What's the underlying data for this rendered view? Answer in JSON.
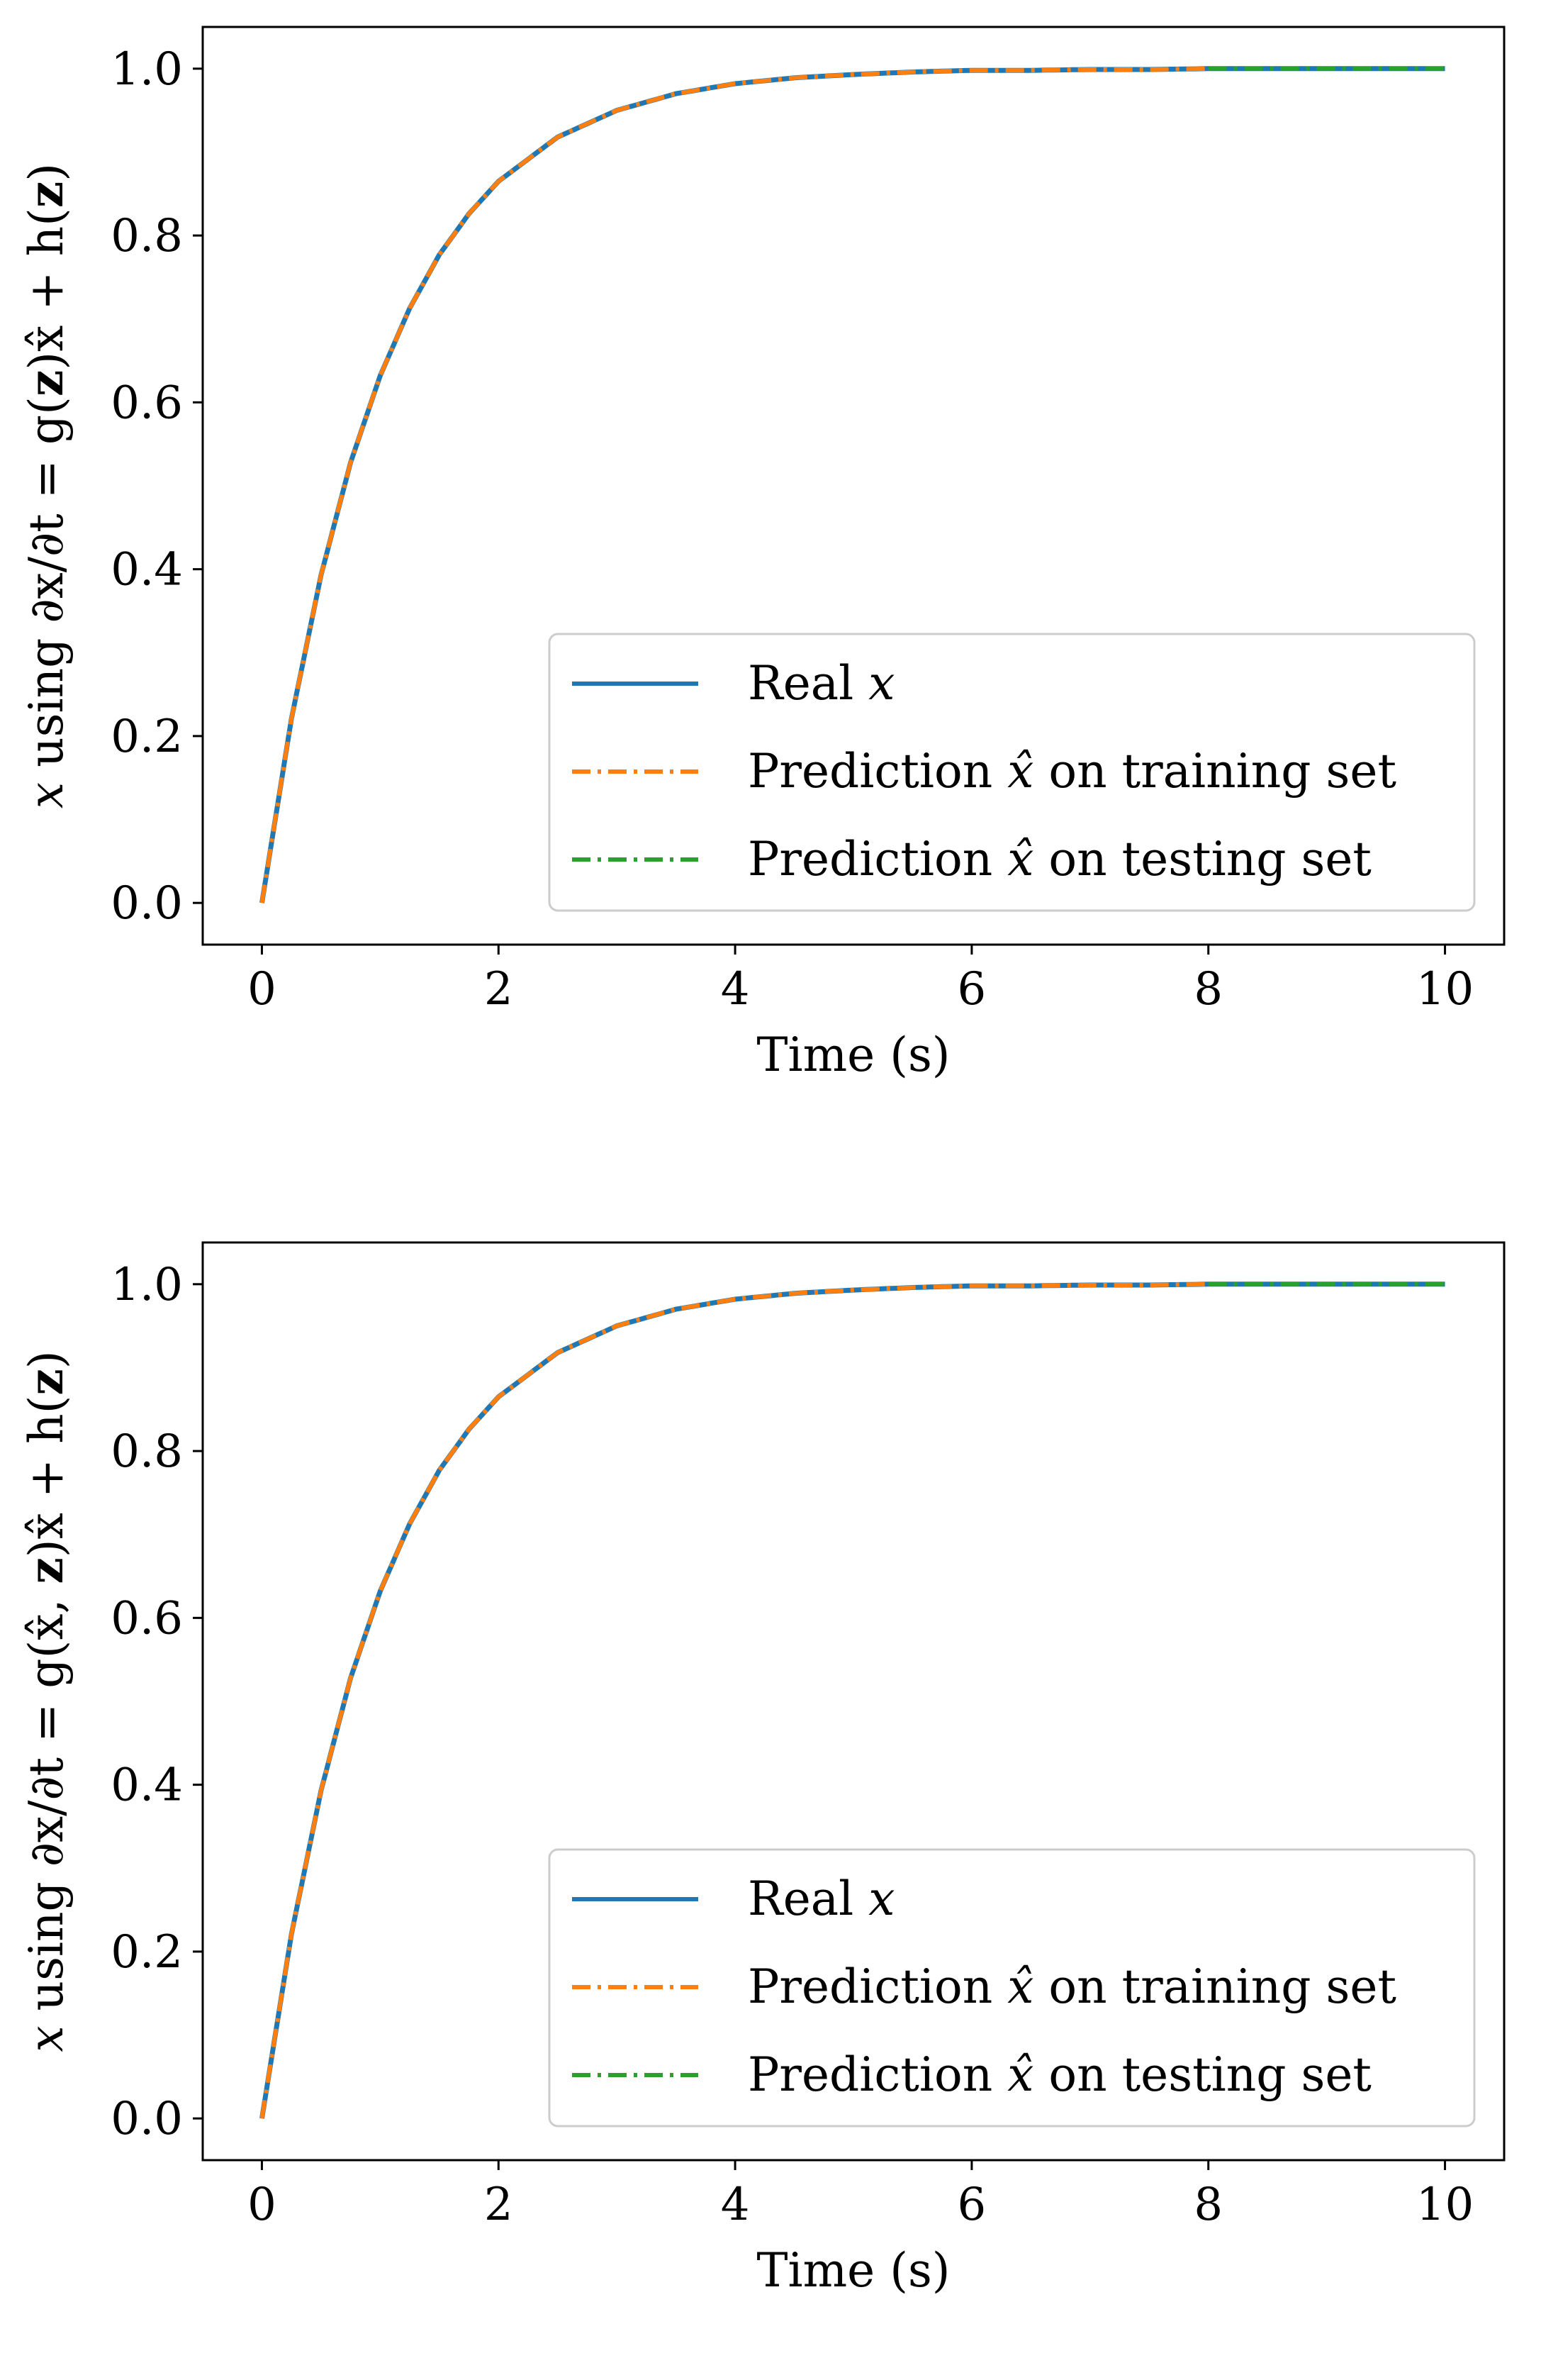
{
  "chart_data": [
    {
      "type": "line",
      "title": "",
      "xlabel": "Time (s)",
      "ylabel": "x using ∂x/∂t = g(z)x̂ + h(z)",
      "xlim": [
        -0.5,
        10.5
      ],
      "ylim": [
        -0.05,
        1.05
      ],
      "xticks": [
        0,
        2,
        4,
        6,
        8,
        10
      ],
      "xtick_labels": [
        "0",
        "2",
        "4",
        "6",
        "8",
        "10"
      ],
      "yticks": [
        0.0,
        0.2,
        0.4,
        0.6,
        0.8,
        1.0
      ],
      "ytick_labels": [
        "0.0",
        "0.2",
        "0.4",
        "0.6",
        "0.8",
        "1.0"
      ],
      "legend_position": "lower-right",
      "x": [
        0,
        0.25,
        0.5,
        0.75,
        1,
        1.25,
        1.5,
        1.75,
        2,
        2.5,
        3,
        3.5,
        4,
        4.5,
        5,
        5.5,
        6,
        6.5,
        7,
        7.5,
        8,
        8.5,
        9,
        9.5,
        10
      ],
      "series": [
        {
          "name": "Real x",
          "label": "Real",
          "math": "x",
          "color": "#1f77b4",
          "style": "solid",
          "x_range": [
            0,
            10
          ],
          "values": [
            0,
            0.221,
            0.393,
            0.528,
            0.632,
            0.713,
            0.777,
            0.826,
            0.865,
            0.918,
            0.95,
            0.97,
            0.982,
            0.989,
            0.993,
            0.996,
            0.998,
            0.998,
            0.999,
            0.999,
            1.0,
            1.0,
            1.0,
            1.0,
            1.0
          ]
        },
        {
          "name": "Prediction x̂ on training set",
          "label": "Prediction",
          "math": "x̂",
          "suffix": "on training set",
          "color": "#ff7f0e",
          "style": "dashdot",
          "x_range": [
            0,
            8
          ],
          "values": [
            0,
            0.221,
            0.393,
            0.528,
            0.632,
            0.713,
            0.777,
            0.826,
            0.865,
            0.918,
            0.95,
            0.97,
            0.982,
            0.989,
            0.993,
            0.996,
            0.998,
            0.998,
            0.999,
            0.999,
            1.0,
            null,
            null,
            null,
            null
          ]
        },
        {
          "name": "Prediction x̂ on testing set",
          "label": "Prediction",
          "math": "x̂",
          "suffix": "on testing set",
          "color": "#2ca02c",
          "style": "dashdot",
          "x_range": [
            8,
            10
          ],
          "values": [
            null,
            null,
            null,
            null,
            null,
            null,
            null,
            null,
            null,
            null,
            null,
            null,
            null,
            null,
            null,
            null,
            null,
            null,
            null,
            null,
            1.0,
            1.0,
            1.0,
            1.0,
            1.0
          ]
        }
      ]
    },
    {
      "type": "line",
      "title": "",
      "xlabel": "Time (s)",
      "ylabel": "x using ∂x/∂t = g(x̂, z)x̂ + h(z)",
      "xlim": [
        -0.5,
        10.5
      ],
      "ylim": [
        -0.05,
        1.05
      ],
      "xticks": [
        0,
        2,
        4,
        6,
        8,
        10
      ],
      "xtick_labels": [
        "0",
        "2",
        "4",
        "6",
        "8",
        "10"
      ],
      "yticks": [
        0.0,
        0.2,
        0.4,
        0.6,
        0.8,
        1.0
      ],
      "ytick_labels": [
        "0.0",
        "0.2",
        "0.4",
        "0.6",
        "0.8",
        "1.0"
      ],
      "legend_position": "lower-right",
      "x": [
        0,
        0.25,
        0.5,
        0.75,
        1,
        1.25,
        1.5,
        1.75,
        2,
        2.5,
        3,
        3.5,
        4,
        4.5,
        5,
        5.5,
        6,
        6.5,
        7,
        7.5,
        8,
        8.5,
        9,
        9.5,
        10
      ],
      "series": [
        {
          "name": "Real x",
          "label": "Real",
          "math": "x",
          "color": "#1f77b4",
          "style": "solid",
          "x_range": [
            0,
            10
          ],
          "values": [
            0,
            0.221,
            0.393,
            0.528,
            0.632,
            0.713,
            0.777,
            0.826,
            0.865,
            0.918,
            0.95,
            0.97,
            0.982,
            0.989,
            0.993,
            0.996,
            0.998,
            0.998,
            0.999,
            0.999,
            1.0,
            1.0,
            1.0,
            1.0,
            1.0
          ]
        },
        {
          "name": "Prediction x̂ on training set",
          "label": "Prediction",
          "math": "x̂",
          "suffix": "on training set",
          "color": "#ff7f0e",
          "style": "dashdot",
          "x_range": [
            0,
            8
          ],
          "values": [
            0,
            0.221,
            0.393,
            0.528,
            0.632,
            0.713,
            0.777,
            0.826,
            0.865,
            0.918,
            0.95,
            0.97,
            0.982,
            0.989,
            0.993,
            0.996,
            0.998,
            0.998,
            0.999,
            0.999,
            1.0,
            null,
            null,
            null,
            null
          ]
        },
        {
          "name": "Prediction x̂ on testing set",
          "label": "Prediction",
          "math": "x̂",
          "suffix": "on testing set",
          "color": "#2ca02c",
          "style": "dashdot",
          "x_range": [
            8,
            10
          ],
          "values": [
            null,
            null,
            null,
            null,
            null,
            null,
            null,
            null,
            null,
            null,
            null,
            null,
            null,
            null,
            null,
            null,
            null,
            null,
            null,
            null,
            1.0,
            1.0,
            1.0,
            1.0,
            1.0
          ]
        }
      ]
    }
  ],
  "ylabel_parts": [
    {
      "lead": "x",
      "text": " using ∂x/∂t = g(",
      "bold": "z",
      "tail": ")x̂ + h(",
      "bold2": "z",
      "end": ")"
    },
    {
      "lead": "x",
      "text": " using ∂x/∂t = g(x̂, ",
      "bold": "z",
      "tail": ")x̂ + h(",
      "bold2": "z",
      "end": ")"
    }
  ]
}
